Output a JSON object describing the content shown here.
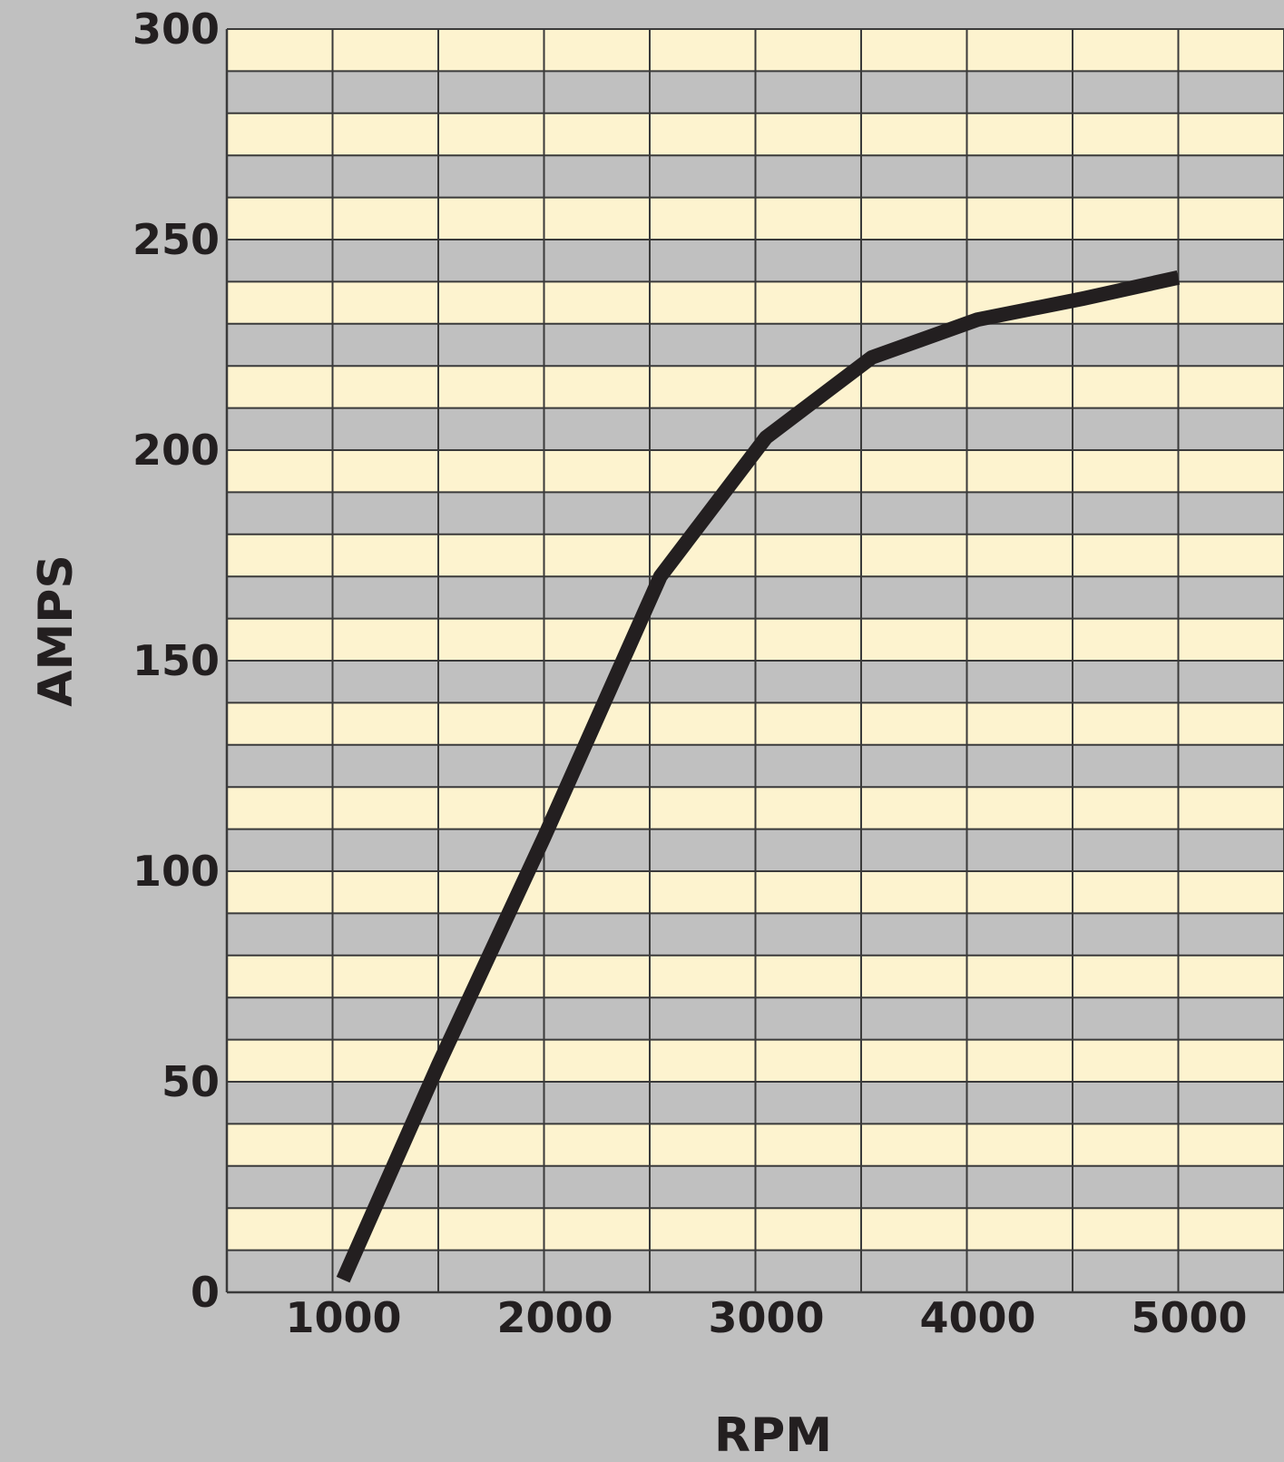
{
  "colors": {
    "background": "#c0c0c0",
    "band_fill": "#fdf3cf",
    "grid_line": "#3a3a3a",
    "series_line": "#231f20",
    "text": "#231f20"
  },
  "chart_data": {
    "type": "line",
    "title": "",
    "xlabel": "RPM",
    "ylabel": "AMPS",
    "xlim": [
      500,
      5500
    ],
    "ylim": [
      0,
      300
    ],
    "x_ticks": [
      1000,
      2000,
      3000,
      4000,
      5000
    ],
    "x_tick_labels": [
      "1000",
      "2000",
      "3000",
      "4000",
      "5000"
    ],
    "y_ticks": [
      0,
      50,
      100,
      150,
      200,
      250,
      300
    ],
    "y_tick_labels": [
      "0",
      "50",
      "100",
      "150",
      "200",
      "250",
      "300"
    ],
    "x_grid_step": 500,
    "y_grid_step": 10,
    "grid": true,
    "alternating_bands": true,
    "legend": "none",
    "series": [
      {
        "x": [
          1050,
          1500,
          2000,
          2550,
          3050,
          3550,
          4050,
          4550,
          5000
        ],
        "y": [
          3,
          54,
          108,
          170,
          203,
          222,
          231,
          236,
          241
        ]
      }
    ]
  }
}
